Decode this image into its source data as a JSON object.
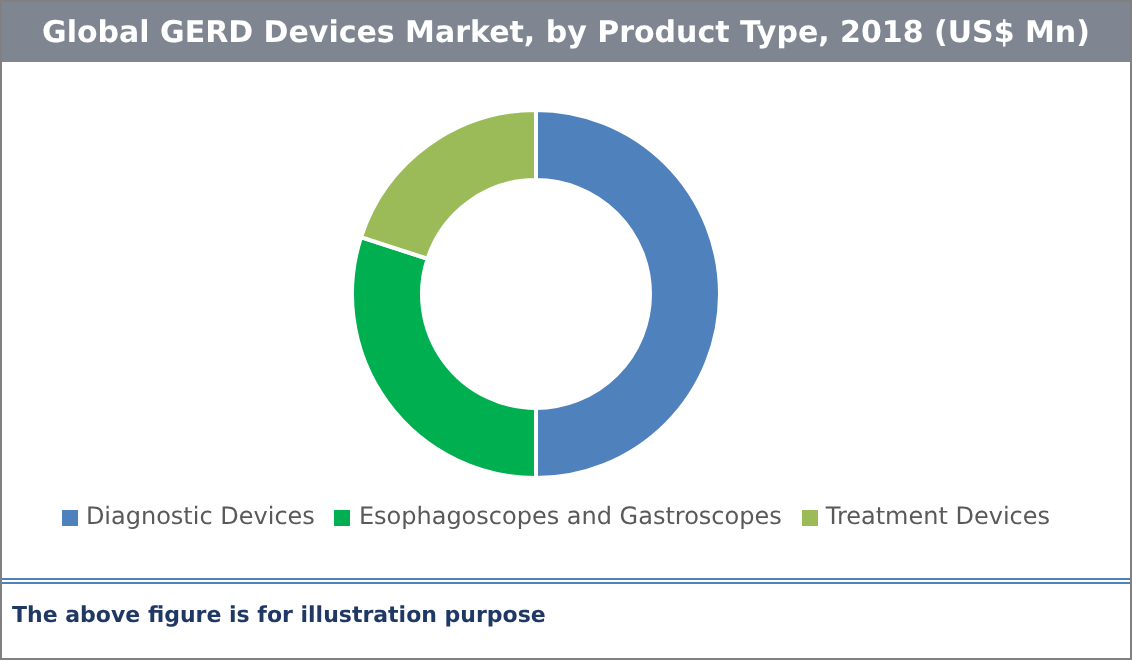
{
  "chart_data": {
    "type": "donut",
    "title": "Global GERD Devices Market, by Product Type, 2018 (US$ Mn)",
    "categories": [
      "Diagnostic Devices",
      "Esophagoscopes and Gastroscopes",
      "Treatment Devices"
    ],
    "values": [
      50,
      30,
      20
    ],
    "colors": [
      "#4f81bd",
      "#00b050",
      "#9bbb59"
    ],
    "legend": "bottom",
    "annotations": [
      "The above figure is for illustration purpose"
    ]
  }
}
